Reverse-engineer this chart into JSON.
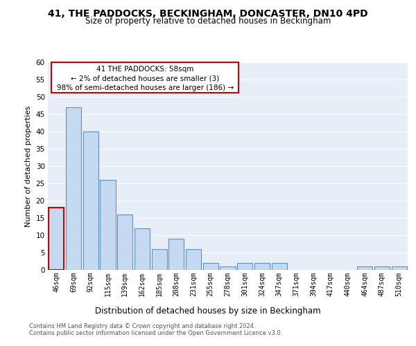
{
  "title_line1": "41, THE PADDOCKS, BECKINGHAM, DONCASTER, DN10 4PD",
  "title_line2": "Size of property relative to detached houses in Beckingham",
  "xlabel": "Distribution of detached houses by size in Beckingham",
  "ylabel": "Number of detached properties",
  "categories": [
    "46sqm",
    "69sqm",
    "92sqm",
    "115sqm",
    "139sqm",
    "162sqm",
    "185sqm",
    "208sqm",
    "231sqm",
    "255sqm",
    "278sqm",
    "301sqm",
    "324sqm",
    "347sqm",
    "371sqm",
    "394sqm",
    "417sqm",
    "440sqm",
    "464sqm",
    "487sqm",
    "510sqm"
  ],
  "values": [
    18,
    47,
    40,
    26,
    16,
    12,
    6,
    9,
    6,
    2,
    1,
    2,
    2,
    2,
    0,
    0,
    0,
    0,
    1,
    1,
    1
  ],
  "bar_color": "#c5d9f0",
  "bar_edge_color": "#5b8fc9",
  "highlight_bar_index": 0,
  "highlight_edge_color": "#cc0000",
  "ylim": [
    0,
    60
  ],
  "yticks": [
    0,
    5,
    10,
    15,
    20,
    25,
    30,
    35,
    40,
    45,
    50,
    55,
    60
  ],
  "annotation_title": "41 THE PADDOCKS: 58sqm",
  "annotation_line1": "← 2% of detached houses are smaller (3)",
  "annotation_line2": "98% of semi-detached houses are larger (186) →",
  "annotation_box_color": "#ffffff",
  "annotation_box_edge_color": "#cc0000",
  "footer_line1": "Contains HM Land Registry data © Crown copyright and database right 2024.",
  "footer_line2": "Contains public sector information licensed under the Open Government Licence v3.0.",
  "background_color": "#e8eef7",
  "grid_color": "#ffffff",
  "fig_bg_color": "#ffffff"
}
